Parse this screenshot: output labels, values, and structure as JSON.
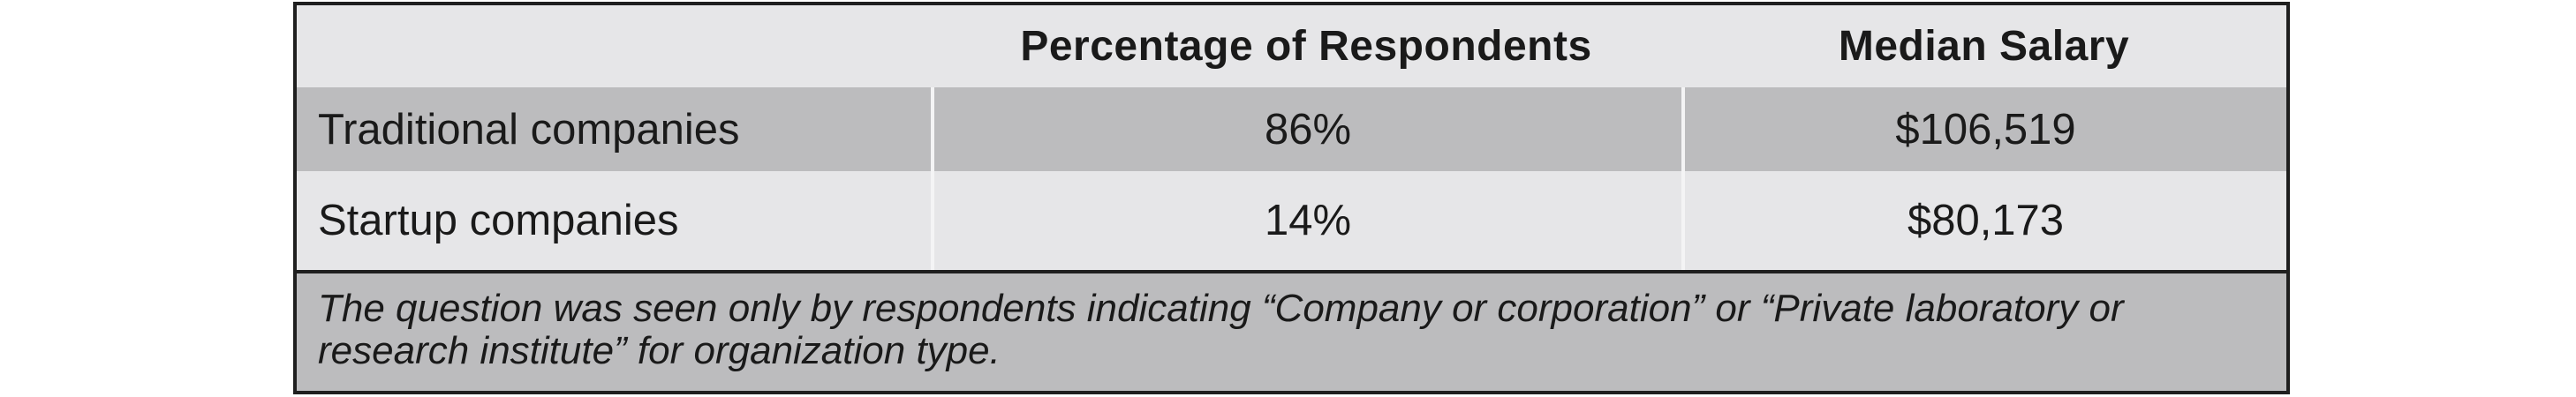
{
  "table": {
    "headers": [
      "",
      "Percentage of Respondents",
      "Median Salary"
    ],
    "rows": [
      {
        "label": "Traditional companies",
        "percentage": "86%",
        "salary": "$106,519"
      },
      {
        "label": "Startup companies",
        "percentage": "14%",
        "salary": "$80,173"
      }
    ],
    "note": "The question was seen only by respondents indicating “Company or corporation” or “Private laboratory or research institute” for organization type."
  },
  "colors": {
    "border": "#1f1f1f",
    "light_row": "#e6e6e8",
    "dark_row": "#bcbcbe"
  }
}
